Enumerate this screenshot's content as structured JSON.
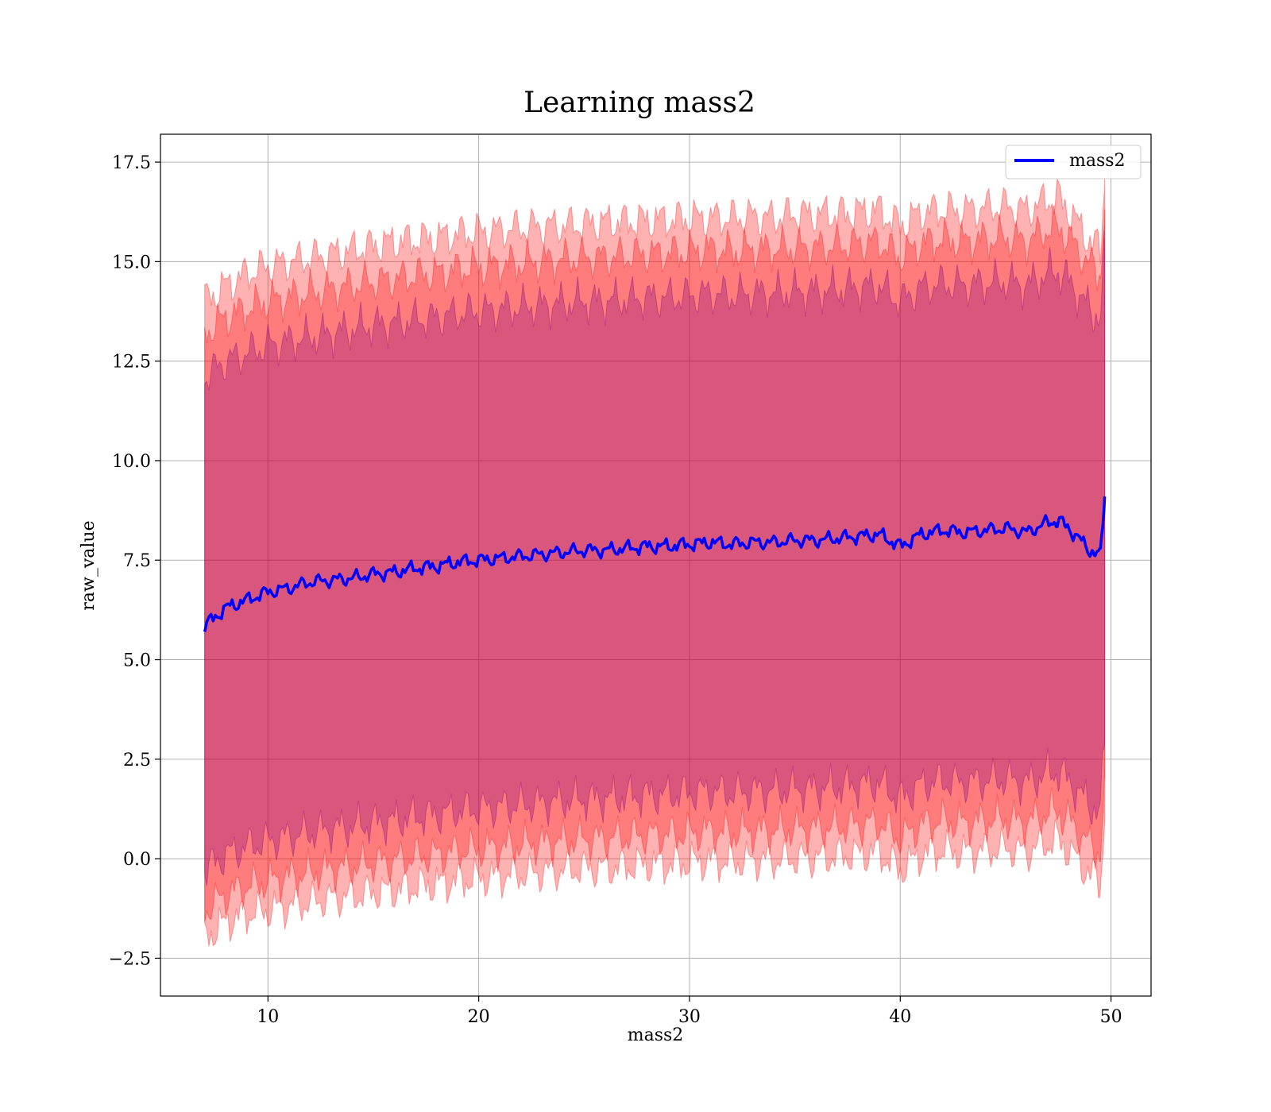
{
  "chart_data": {
    "type": "line",
    "title": "Learning mass2",
    "xlabel": "mass2",
    "ylabel": "raw_value",
    "xlim": [
      4.9,
      51.9
    ],
    "ylim": [
      -3.45,
      18.2
    ],
    "x_ticks": [
      10,
      20,
      30,
      40,
      50
    ],
    "x_tick_labels": [
      "10",
      "20",
      "30",
      "40",
      "50"
    ],
    "y_ticks": [
      -2.5,
      0.0,
      2.5,
      5.0,
      7.5,
      10.0,
      12.5,
      15.0,
      17.5
    ],
    "y_tick_labels": [
      "−2.5",
      "0.0",
      "2.5",
      "5.0",
      "7.5",
      "10.0",
      "12.5",
      "15.0",
      "17.5"
    ],
    "grid": true,
    "legend": {
      "position": "top-right",
      "entries": [
        "mass2"
      ]
    },
    "series": [
      {
        "name": "mass2",
        "color": "#0000ff",
        "x": [
          7.0,
          8,
          9,
          10,
          11,
          12,
          13,
          14,
          15,
          16,
          17,
          18,
          19,
          20,
          21,
          22,
          23,
          24,
          25,
          26,
          27,
          28,
          29,
          30,
          31,
          32,
          33,
          34,
          35,
          36,
          37,
          38,
          39,
          40,
          41,
          42,
          43,
          44,
          45,
          46,
          47,
          47.5,
          48,
          49,
          49.5,
          49.7
        ],
        "y": [
          5.85,
          6.3,
          6.5,
          6.7,
          6.8,
          6.95,
          7.0,
          7.05,
          7.15,
          7.2,
          7.3,
          7.35,
          7.45,
          7.5,
          7.55,
          7.6,
          7.65,
          7.7,
          7.75,
          7.75,
          7.8,
          7.85,
          7.85,
          7.9,
          7.95,
          7.9,
          7.95,
          7.95,
          8.0,
          8.0,
          8.05,
          8.1,
          8.15,
          7.85,
          8.15,
          8.25,
          8.2,
          8.25,
          8.3,
          8.2,
          8.45,
          8.5,
          8.3,
          7.75,
          7.6,
          9.1
        ]
      }
    ],
    "bands": [
      {
        "color": "#ff0000",
        "x": [
          7.0,
          8,
          9,
          10,
          11,
          12,
          13,
          14,
          15,
          16,
          17,
          18,
          19,
          20,
          21,
          22,
          23,
          24,
          25,
          26,
          27,
          28,
          29,
          30,
          31,
          32,
          33,
          34,
          35,
          36,
          37,
          38,
          39,
          40,
          41,
          42,
          43,
          44,
          45,
          46,
          47,
          47.5,
          48,
          49,
          49.5,
          49.7
        ],
        "upper": [
          14.0,
          14.4,
          14.7,
          14.9,
          15.0,
          15.1,
          15.2,
          15.3,
          15.4,
          15.5,
          15.55,
          15.6,
          15.7,
          15.75,
          15.8,
          15.85,
          15.9,
          15.9,
          15.95,
          16.0,
          16.0,
          16.05,
          16.05,
          16.1,
          16.1,
          16.1,
          16.15,
          16.1,
          16.2,
          16.2,
          16.2,
          16.25,
          16.3,
          15.9,
          16.25,
          16.3,
          16.3,
          16.35,
          16.4,
          16.3,
          16.55,
          16.6,
          16.3,
          15.5,
          15.3,
          17.1
        ],
        "lower": [
          -2.0,
          -1.6,
          -1.4,
          -1.3,
          -1.2,
          -1.1,
          -1.0,
          -0.95,
          -0.85,
          -0.8,
          -0.7,
          -0.65,
          -0.55,
          -0.5,
          -0.45,
          -0.4,
          -0.35,
          -0.3,
          -0.25,
          -0.25,
          -0.2,
          -0.15,
          -0.15,
          -0.1,
          -0.05,
          -0.1,
          -0.05,
          -0.05,
          0.0,
          0.0,
          0.05,
          0.1,
          0.15,
          -0.3,
          0.1,
          0.2,
          0.15,
          0.2,
          0.25,
          0.15,
          0.4,
          0.45,
          0.2,
          -0.4,
          -0.6,
          1.0
        ]
      },
      {
        "color": "#ff0000",
        "x": [
          7.0,
          8,
          9,
          10,
          11,
          12,
          13,
          14,
          15,
          16,
          17,
          18,
          19,
          20,
          21,
          22,
          23,
          24,
          25,
          26,
          27,
          28,
          29,
          30,
          31,
          32,
          33,
          34,
          35,
          36,
          37,
          38,
          39,
          40,
          41,
          42,
          43,
          44,
          45,
          46,
          47,
          47.5,
          48,
          49,
          49.5,
          49.7
        ],
        "upper": [
          13.2,
          13.6,
          13.8,
          14.0,
          14.1,
          14.2,
          14.3,
          14.4,
          14.5,
          14.55,
          14.65,
          14.7,
          14.8,
          14.85,
          14.9,
          14.95,
          15.0,
          15.05,
          15.1,
          15.1,
          15.15,
          15.2,
          15.2,
          15.25,
          15.3,
          15.25,
          15.3,
          15.3,
          15.35,
          15.35,
          15.4,
          15.45,
          15.5,
          15.1,
          15.45,
          15.55,
          15.5,
          15.55,
          15.6,
          15.5,
          15.8,
          15.85,
          15.6,
          14.9,
          14.7,
          16.3
        ],
        "lower": [
          -1.3,
          -0.9,
          -0.7,
          -0.55,
          -0.45,
          -0.35,
          -0.25,
          -0.2,
          -0.1,
          -0.05,
          0.05,
          0.1,
          0.2,
          0.25,
          0.3,
          0.35,
          0.4,
          0.45,
          0.5,
          0.5,
          0.55,
          0.6,
          0.6,
          0.65,
          0.7,
          0.65,
          0.7,
          0.7,
          0.75,
          0.75,
          0.8,
          0.85,
          0.9,
          0.5,
          0.85,
          0.95,
          0.9,
          0.95,
          1.0,
          0.9,
          1.15,
          1.2,
          0.95,
          0.35,
          0.15,
          2.0
        ]
      },
      {
        "color": "#800080",
        "x": [
          7.0,
          8,
          9,
          10,
          11,
          12,
          13,
          14,
          15,
          16,
          17,
          18,
          19,
          20,
          21,
          22,
          23,
          24,
          25,
          26,
          27,
          28,
          29,
          30,
          31,
          32,
          33,
          34,
          35,
          36,
          37,
          38,
          39,
          40,
          41,
          42,
          43,
          44,
          45,
          46,
          47,
          47.5,
          48,
          49,
          49.5,
          49.7
        ],
        "upper": [
          12.1,
          12.5,
          12.7,
          12.9,
          13.0,
          13.1,
          13.2,
          13.3,
          13.4,
          13.45,
          13.55,
          13.6,
          13.7,
          13.75,
          13.8,
          13.85,
          13.9,
          13.95,
          14.0,
          14.0,
          14.05,
          14.1,
          14.1,
          14.15,
          14.2,
          14.15,
          14.2,
          14.2,
          14.25,
          14.25,
          14.3,
          14.35,
          14.4,
          14.0,
          14.35,
          14.45,
          14.4,
          14.45,
          14.5,
          14.4,
          14.7,
          14.75,
          14.5,
          13.8,
          13.6,
          15.3
        ],
        "lower": [
          -0.3,
          0.1,
          0.3,
          0.45,
          0.55,
          0.65,
          0.75,
          0.8,
          0.9,
          0.95,
          1.05,
          1.1,
          1.2,
          1.25,
          1.3,
          1.35,
          1.4,
          1.45,
          1.5,
          1.5,
          1.55,
          1.6,
          1.6,
          1.65,
          1.7,
          1.65,
          1.7,
          1.7,
          1.75,
          1.75,
          1.8,
          1.85,
          1.9,
          1.5,
          1.85,
          1.95,
          1.9,
          1.95,
          2.0,
          1.9,
          2.15,
          2.2,
          1.95,
          1.35,
          1.15,
          3.0
        ]
      }
    ]
  }
}
